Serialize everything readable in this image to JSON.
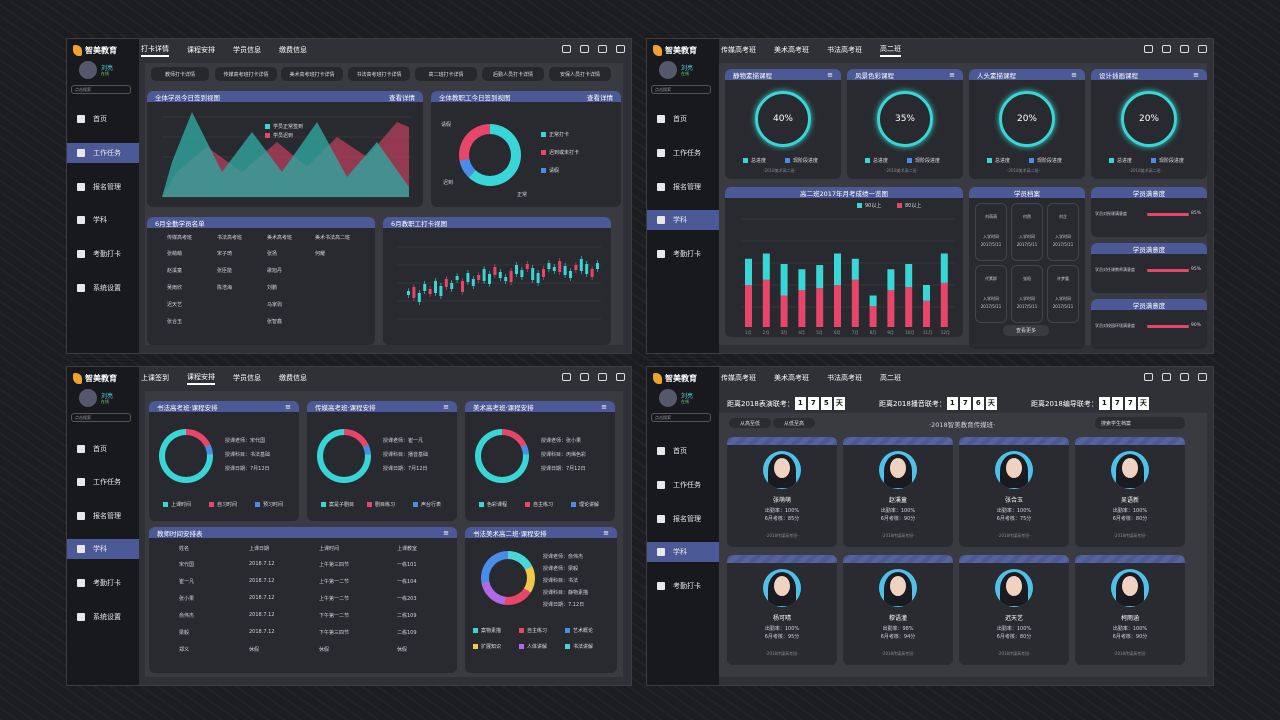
{
  "brand": "智美教育",
  "user": {
    "name": "刘亮",
    "role": "在线"
  },
  "search_placeholder": "点击搜索",
  "nav": [
    "首页",
    "工作任务",
    "报名管理",
    "学科",
    "考勤打卡",
    "系统设置"
  ],
  "p1": {
    "tabs": [
      "打卡详情",
      "课程安排",
      "学员信息",
      "缴费信息"
    ],
    "pills": [
      "教师打卡详情",
      "传媒高考班打卡详情",
      "美术高考班打卡详情",
      "书法高考班打卡详情",
      "高二班打卡详情",
      "后勤人员打卡详情",
      "安保人员打卡详情"
    ],
    "c1": {
      "title": "全体学员今日签到视图",
      "more": "查看详情",
      "legend": [
        "学员正常签到",
        "学员迟到"
      ]
    },
    "c2": {
      "title": "全体教职工今日签到视图",
      "more": "查看详情",
      "legend": [
        "正常打卡",
        "迟到或未打卡",
        "请假"
      ],
      "labels": [
        "请假",
        "迟到",
        "正常"
      ]
    },
    "c3": {
      "title": "6月全勤学员名单",
      "headers": [
        "传媒高考班",
        "书法高考班",
        "美术高考班",
        "美术书法高二班"
      ],
      "rows": [
        [
          "张萌萌",
          "宋子琦",
          "张扬",
          "何耀"
        ],
        [
          "赵溪童",
          "张臣能",
          "歌旭丹",
          ""
        ],
        [
          "吴雨欣",
          "陈浩海",
          "刘鹏",
          ""
        ],
        [
          "迟天艺",
          "",
          "马家驹",
          ""
        ],
        [
          "张合玉",
          "",
          "张智鑫",
          ""
        ]
      ]
    },
    "c4": {
      "title": "6月教职工打卡视图"
    }
  },
  "p2": {
    "tabs": [
      "传媒高考班",
      "美术高考班",
      "书法高考班",
      "高二班"
    ],
    "courses": [
      {
        "title": "静物素描课程",
        "pct": "40%"
      },
      {
        "title": "风景色彩课程",
        "pct": "35%"
      },
      {
        "title": "人头素描课程",
        "pct": "20%"
      },
      {
        "title": "设计插画课程",
        "pct": "20%"
      }
    ],
    "course_legend": [
      "总进度",
      "现阶段进度"
    ],
    "course_foot": "-2018美术高二班-",
    "chart_title": "高二班2017年月考成绩一览图",
    "chart_legend": [
      "90以上",
      "80以上"
    ],
    "chart_data": {
      "type": "bar",
      "stacked": true,
      "categories": [
        "1月",
        "2月",
        "3月",
        "4月",
        "5月",
        "6月",
        "7月",
        "8月",
        "9月",
        "10月",
        "11月",
        "12月"
      ],
      "series": [
        {
          "name": "80以上",
          "values": [
            40,
            45,
            30,
            35,
            37,
            40,
            45,
            20,
            35,
            38,
            25,
            42
          ]
        },
        {
          "name": "90以上",
          "values": [
            25,
            25,
            30,
            20,
            22,
            30,
            20,
            10,
            20,
            22,
            15,
            28
          ]
        }
      ],
      "ylim": [
        0,
        100
      ]
    },
    "archive": {
      "title": "学员档案",
      "people": [
        [
          "刘萌萌",
          "入学时间",
          "2017/5/11"
        ],
        [
          "何然",
          "入学时间",
          "2017/5/11"
        ],
        [
          "刘芷",
          "入学时间",
          "2017/5/11"
        ],
        [
          "代素群",
          "入学时间",
          "2017/5/11"
        ],
        [
          "张阳",
          "入学时间",
          "2017/5/11"
        ],
        [
          "许梦露",
          "入学时间",
          "2017/5/11"
        ]
      ],
      "more": "查看更多"
    },
    "sat": [
      {
        "title": "学员满意度",
        "label": "学员对授课满意度",
        "value": "85%"
      },
      {
        "title": "学员满意度",
        "label": "学员对任课教师满意度",
        "value": "95%"
      },
      {
        "title": "学员满意度",
        "label": "学员对校园环境满意度",
        "value": "90%"
      }
    ]
  },
  "p3": {
    "tabs": [
      "上课签到",
      "课程安排",
      "学员信息",
      "缴费信息"
    ],
    "classes": [
      {
        "title": "书法高考班·课程安排",
        "teacher": "授课老师：宋代国",
        "subject": "授课科目：书法基础",
        "date": "授课日期：7月12日",
        "legend": [
          "上课时间",
          "自习时间",
          "预习时间"
        ]
      },
      {
        "title": "传媒高考班·课程安排",
        "teacher": "授课老师：崔一凡",
        "subject": "授课科目：播音基础",
        "date": "授课日期：7月12日",
        "legend": [
          "案是子剧目",
          "剧目练习",
          "声台行表"
        ]
      },
      {
        "title": "美术高考班·课程安排",
        "teacher": "授课老师：张小果",
        "subject": "授课科目：丙烯色彩",
        "date": "授课日期：7月12日",
        "legend": [
          "色彩课程",
          "自主练习",
          "理论讲解"
        ]
      }
    ],
    "schedule": {
      "title": "教师时间安排表",
      "headers": [
        "姓名",
        "上课日期",
        "上课时间",
        "上课教室"
      ],
      "rows": [
        [
          "宋代国",
          "2018.7.12",
          "上午第三四节",
          "一栋101"
        ],
        [
          "崔一凡",
          "2018.7.12",
          "上午第一二节",
          "一栋104"
        ],
        [
          "张小果",
          "2018.7.12",
          "上午第一二节",
          "一栋203"
        ],
        [
          "俞伟杰",
          "2018.7.12",
          "下午第一二节",
          "二栋109"
        ],
        [
          "梁毅",
          "2018.7.12",
          "下午第三四节",
          "二栋109"
        ],
        [
          "郑义",
          "休假",
          "休假",
          "休假"
        ]
      ]
    },
    "art2": {
      "title": "书法美术高二班·课程安排",
      "teacher": "授课老师：俞伟杰",
      "teacher2": "授课老师：梁毅",
      "subject": "授课科目：书法",
      "subject2": "授课科目：静物素描",
      "date": "授课日期：7.12日",
      "legend": [
        "案物素描",
        "自主练习",
        "艺术概论",
        "扩展知识",
        "人体讲解",
        "书法讲解"
      ]
    }
  },
  "p4": {
    "tabs": [
      "传媒高考班",
      "美术高考班",
      "书法高考班",
      "高二班"
    ],
    "countdowns": [
      {
        "label": "距离2018表演联考：",
        "digits": [
          "1",
          "7",
          "5"
        ],
        "unit": "天"
      },
      {
        "label": "距离2018播音联考：",
        "digits": [
          "1",
          "7",
          "6"
        ],
        "unit": "天"
      },
      {
        "label": "距离2018编导联考：",
        "digits": [
          "1",
          "7",
          "7"
        ],
        "unit": "天"
      }
    ],
    "filters": [
      "从高至低",
      "从低至高"
    ],
    "heading": "·2018智美教育传媒班·",
    "search": "搜索学生档案",
    "students": [
      {
        "name": "张萌萌",
        "att": "出勤率：100%",
        "score": "6月考核：85分"
      },
      {
        "name": "赵溪童",
        "att": "出勤率：100%",
        "score": "6月考核：90分"
      },
      {
        "name": "张合玉",
        "att": "出勤率：100%",
        "score": "6月考核：75分"
      },
      {
        "name": "吴语新",
        "att": "出勤率：100%",
        "score": "6月考核：80分"
      },
      {
        "name": "杨可晴",
        "att": "出勤率：100%",
        "score": "6月考核：95分"
      },
      {
        "name": "穆语潼",
        "att": "出勤率：98%",
        "score": "6月考核：94分"
      },
      {
        "name": "迟天艺",
        "att": "出勤率：100%",
        "score": "6月考核：80分"
      },
      {
        "name": "柯雨涵",
        "att": "出勤率：100%",
        "score": "6月考核：90分"
      }
    ],
    "student_foot": "-2018传媒高考班-"
  }
}
